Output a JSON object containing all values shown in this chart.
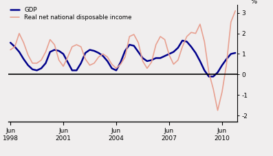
{
  "title": "",
  "ylabel_right": "%",
  "gdp_color": "#00008B",
  "rndi_color": "#E8A090",
  "gdp_linewidth": 1.8,
  "rndi_linewidth": 1.2,
  "ylim": [
    -2.3,
    3.4
  ],
  "yticks": [
    -2,
    -1,
    0,
    1,
    2,
    3
  ],
  "legend_gdp": "GDP",
  "legend_rndi": "Real net national disposable income",
  "background_color": "#f0eeee",
  "gdp_values": [
    1.55,
    1.35,
    1.1,
    0.75,
    0.45,
    0.25,
    0.2,
    0.3,
    0.55,
    1.1,
    1.2,
    1.15,
    1.0,
    0.6,
    0.2,
    0.2,
    0.55,
    1.05,
    1.2,
    1.15,
    1.05,
    0.9,
    0.65,
    0.3,
    0.2,
    0.6,
    1.15,
    1.45,
    1.4,
    1.1,
    0.8,
    0.65,
    0.7,
    0.8,
    0.8,
    0.9,
    1.0,
    1.1,
    1.3,
    1.65,
    1.6,
    1.35,
    1.05,
    0.65,
    0.2,
    -0.1,
    -0.1,
    0.1,
    0.45,
    0.75,
    1.0,
    1.05
  ],
  "rndi_values": [
    1.2,
    1.35,
    2.0,
    1.55,
    0.95,
    0.55,
    0.55,
    0.7,
    1.1,
    1.7,
    1.45,
    0.7,
    0.4,
    0.85,
    1.35,
    1.45,
    1.35,
    0.75,
    0.45,
    0.55,
    0.85,
    1.0,
    0.85,
    0.5,
    0.3,
    0.5,
    0.85,
    1.85,
    1.95,
    1.55,
    0.65,
    0.3,
    0.6,
    1.45,
    1.85,
    1.7,
    0.95,
    0.5,
    0.7,
    1.35,
    1.85,
    2.05,
    2.0,
    2.45,
    1.6,
    0.1,
    -0.7,
    -1.75,
    -0.85,
    0.5,
    2.55,
    3.1
  ],
  "shown_xtick_positions": [
    0,
    12,
    24,
    36,
    48
  ],
  "shown_xtick_top": [
    "Jun",
    "Jun",
    "Jun",
    "Jun",
    "Jun"
  ],
  "shown_xtick_bot": [
    "1998",
    "2001",
    "2004",
    "2007",
    "2010"
  ]
}
